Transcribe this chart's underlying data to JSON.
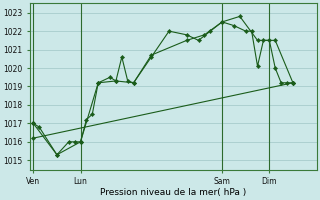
{
  "title": "Pression niveau de la mer( hPa )",
  "bg_color": "#cce8e8",
  "grid_color": "#b0d4d4",
  "line_color": "#1a5c1a",
  "ylim": [
    1014.5,
    1023.5
  ],
  "yticks": [
    1015,
    1016,
    1017,
    1018,
    1019,
    1020,
    1021,
    1022,
    1023
  ],
  "xtick_labels": [
    "Ven",
    "Lun",
    "Sam",
    "Dim"
  ],
  "xtick_positions": [
    0,
    16,
    64,
    80
  ],
  "vline_positions": [
    0,
    16,
    64,
    80
  ],
  "xlim": [
    -1,
    96
  ],
  "line1_x": [
    0,
    2,
    8,
    12,
    14,
    16,
    18,
    20,
    22,
    26,
    28,
    30,
    32,
    34,
    40,
    46,
    52,
    56,
    60,
    64,
    68,
    72,
    74,
    76,
    78,
    80,
    82,
    84,
    86,
    88
  ],
  "line1_y": [
    1017.0,
    1016.8,
    1015.3,
    1016.0,
    1016.0,
    1016.0,
    1017.2,
    1017.5,
    1019.2,
    1019.5,
    1019.3,
    1020.6,
    1019.3,
    1019.2,
    1020.6,
    1022.0,
    1021.8,
    1021.5,
    1022.0,
    1022.5,
    1022.3,
    1022.0,
    1022.0,
    1020.1,
    1021.5,
    1021.5,
    1020.0,
    1019.2,
    1019.2,
    1019.2
  ],
  "line2_x": [
    0,
    8,
    16,
    22,
    28,
    34,
    40,
    52,
    58,
    64,
    70,
    76,
    82,
    88
  ],
  "line2_y": [
    1017.0,
    1015.3,
    1016.0,
    1019.2,
    1019.3,
    1019.2,
    1020.7,
    1021.5,
    1021.8,
    1022.5,
    1022.8,
    1021.5,
    1021.5,
    1019.2
  ],
  "trend_x": [
    0,
    88
  ],
  "trend_y": [
    1016.2,
    1019.2
  ]
}
